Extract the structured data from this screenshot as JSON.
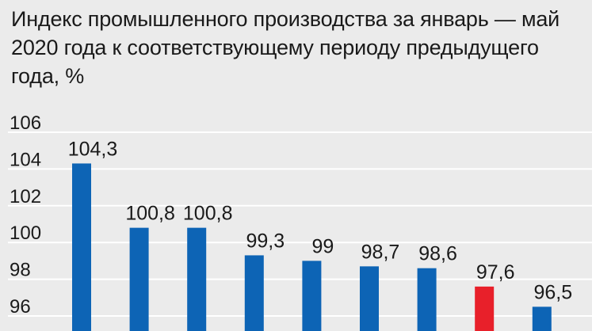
{
  "chart_data": {
    "type": "bar",
    "title": "Индекс промышленного производства за январь — май 2020 года к соответствующему периоду предыдущего года, %",
    "xlabel": "",
    "ylabel": "",
    "ylim": [
      95.3,
      106.5
    ],
    "yticks": [
      96,
      98,
      100,
      102,
      104,
      106
    ],
    "ytick_labels": [
      "96",
      "98",
      "100",
      "102",
      "104",
      "106"
    ],
    "grid": true,
    "legend": false,
    "values": [
      104.3,
      100.8,
      100.8,
      99.3,
      99,
      98.7,
      98.6,
      97.6,
      96.5
    ],
    "value_labels": [
      "104,3",
      "100,8",
      "100,8",
      "99,3",
      "99",
      "98,7",
      "98,6",
      "97,6",
      "96,5"
    ],
    "highlight_index": 7,
    "colors": {
      "bar": "#0d64b5",
      "highlight": "#e8202a",
      "grid": "#ffffff",
      "background": "#ebebeb",
      "text": "#1a1a1a"
    }
  }
}
